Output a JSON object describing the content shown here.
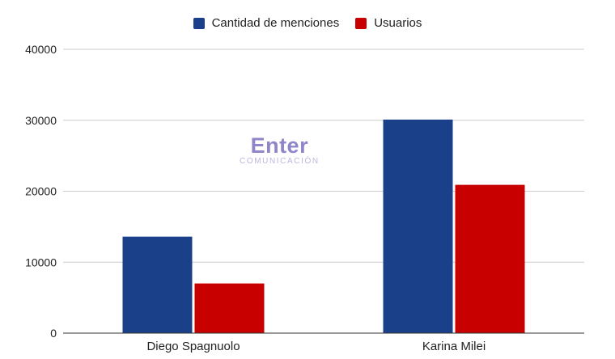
{
  "chart_data": {
    "type": "bar",
    "categories": [
      "Diego Spagnuolo",
      "Karina Milei"
    ],
    "series": [
      {
        "name": "Cantidad de menciones",
        "values": [
          13600,
          30100
        ],
        "color": "#1a408a"
      },
      {
        "name": "Usuarios",
        "values": [
          7000,
          20900
        ],
        "color": "#c80000"
      }
    ],
    "title": "",
    "xlabel": "",
    "ylabel": "",
    "ylim": [
      0,
      40000
    ],
    "yticks": [
      0,
      10000,
      20000,
      30000,
      40000
    ],
    "grid": true,
    "legend_position": "top-center"
  },
  "watermark": {
    "main": "Enter",
    "sub": "COMUNICACIÓN"
  }
}
